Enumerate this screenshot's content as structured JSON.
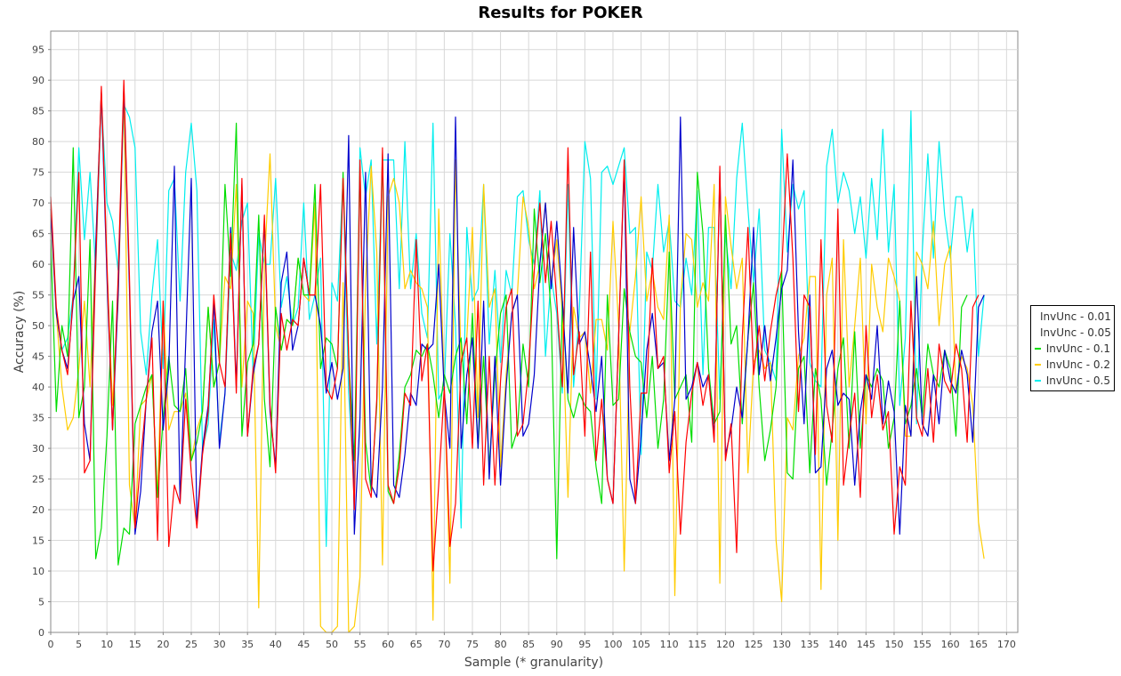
{
  "chart_data": {
    "type": "line",
    "title": "Results for POKER",
    "xlabel": "Sample (* granularity)",
    "ylabel": "Accuracy (%)",
    "xlim": [
      0,
      172
    ],
    "ylim": [
      0,
      98
    ],
    "xticks": [
      0,
      5,
      10,
      15,
      20,
      25,
      30,
      35,
      40,
      45,
      50,
      55,
      60,
      65,
      70,
      75,
      80,
      85,
      90,
      95,
      100,
      105,
      110,
      115,
      120,
      125,
      130,
      135,
      140,
      145,
      150,
      155,
      160,
      165,
      170
    ],
    "yticks": [
      0,
      5,
      10,
      15,
      20,
      25,
      30,
      35,
      40,
      45,
      50,
      55,
      60,
      65,
      70,
      75,
      80,
      85,
      90,
      95
    ],
    "grid": true,
    "legend_position": "right",
    "series": [
      {
        "name": "InvUnc - 0.01",
        "color": "#ff0000",
        "values": [
          71,
          53,
          46,
          42,
          55,
          75,
          26,
          28,
          60,
          89,
          60,
          33,
          58,
          90,
          58,
          17,
          28,
          38,
          48,
          15,
          54,
          14,
          24,
          21,
          38,
          26,
          17,
          29,
          36,
          55,
          44,
          40,
          65,
          39,
          74,
          32,
          43,
          47,
          68,
          37,
          26,
          52,
          46,
          51,
          50,
          61,
          55,
          55,
          73,
          40,
          38,
          43,
          74,
          45,
          20,
          77,
          25,
          22,
          38,
          79,
          24,
          21,
          27,
          39,
          37,
          64,
          41,
          47,
          10,
          24,
          40,
          14,
          21,
          44,
          48,
          30,
          54,
          24,
          45,
          24,
          41,
          53,
          56,
          32,
          34,
          43,
          59,
          70,
          57,
          67,
          54,
          40,
          79,
          42,
          49,
          32,
          62,
          28,
          38,
          25,
          21,
          48,
          77,
          40,
          21,
          39,
          39,
          61,
          43,
          45,
          26,
          36,
          16,
          31,
          39,
          44,
          37,
          42,
          31,
          76,
          28,
          34,
          13,
          48,
          66,
          42,
          50,
          41,
          49,
          55,
          59,
          78,
          61,
          36,
          55,
          53,
          29,
          64,
          37,
          31,
          69,
          24,
          32,
          39,
          22,
          50,
          35,
          42,
          33,
          36,
          16,
          27,
          24,
          54,
          35,
          32,
          43,
          31,
          47,
          41,
          39,
          47,
          43,
          31,
          53,
          55
        ]
      },
      {
        "name": "InvUnc - 0.05",
        "color": "#0000cc",
        "values": [
          69,
          52,
          46,
          43,
          54,
          58,
          34,
          28,
          63,
          88,
          58,
          33,
          55,
          89,
          56,
          16,
          23,
          38,
          49,
          54,
          33,
          43,
          76,
          21,
          47,
          74,
          18,
          30,
          37,
          54,
          30,
          39,
          66,
          40,
          73,
          32,
          42,
          47,
          67,
          36,
          27,
          57,
          62,
          46,
          50,
          61,
          55,
          55,
          50,
          39,
          44,
          38,
          43,
          81,
          16,
          35,
          75,
          24,
          22,
          40,
          78,
          24,
          22,
          29,
          39,
          37,
          47,
          46,
          47,
          60,
          39,
          30,
          84,
          30,
          42,
          48,
          30,
          54,
          25,
          45,
          24,
          40,
          52,
          55,
          32,
          34,
          42,
          60,
          70,
          56,
          67,
          54,
          39,
          66,
          47,
          49,
          43,
          36,
          45,
          25,
          21,
          48,
          76,
          25,
          21,
          32,
          46,
          52,
          43,
          44,
          28,
          38,
          84,
          38,
          40,
          44,
          40,
          42,
          32,
          75,
          29,
          33,
          40,
          35,
          48,
          66,
          42,
          50,
          41,
          48,
          56,
          59,
          77,
          49,
          34,
          55,
          26,
          27,
          43,
          46,
          37,
          39,
          38,
          24,
          36,
          42,
          38,
          50,
          34,
          41,
          36,
          16,
          37,
          32,
          58,
          34,
          32,
          42,
          34,
          46,
          41,
          39,
          46,
          42,
          31,
          53,
          55
        ]
      },
      {
        "name": "InvUnc - 0.1",
        "color": "#00dd00",
        "values": [
          64,
          36,
          50,
          45,
          79,
          35,
          40,
          64,
          12,
          17,
          32,
          54,
          11,
          17,
          16,
          34,
          37,
          40,
          42,
          22,
          35,
          45,
          37,
          36,
          43,
          28,
          31,
          36,
          53,
          40,
          44,
          73,
          58,
          83,
          32,
          44,
          47,
          68,
          38,
          27,
          53,
          46,
          51,
          50,
          61,
          55,
          55,
          73,
          43,
          48,
          47,
          43,
          75,
          45,
          28,
          76,
          31,
          23,
          37,
          78,
          23,
          21,
          29,
          40,
          42,
          46,
          45,
          47,
          42,
          35,
          42,
          39,
          45,
          48,
          34,
          52,
          30,
          45,
          27,
          42,
          52,
          55,
          30,
          33,
          47,
          40,
          69,
          57,
          65,
          52,
          12,
          54,
          38,
          35,
          39,
          37,
          36,
          27,
          21,
          55,
          37,
          38,
          56,
          49,
          45,
          44,
          35,
          45,
          30,
          38,
          62,
          38,
          40,
          42,
          31,
          75,
          65,
          43,
          34,
          36,
          68,
          47,
          50,
          34,
          48,
          57,
          40,
          28,
          33,
          40,
          59,
          26,
          25,
          43,
          45,
          26,
          43,
          38,
          24,
          33,
          43,
          48,
          30,
          49,
          30,
          42,
          40,
          43,
          41,
          30,
          35,
          54,
          34,
          37,
          43,
          35,
          47,
          42,
          40,
          46,
          43,
          32,
          53,
          55
        ]
      },
      {
        "name": "InvUnc - 0.2",
        "color": "#ffcc00",
        "values": [
          68,
          52,
          40,
          33,
          35,
          43,
          54,
          40,
          63,
          88,
          60,
          37,
          54,
          88,
          24,
          17,
          37,
          38,
          42,
          22,
          54,
          33,
          36,
          36,
          39,
          28,
          33,
          36,
          53,
          40,
          44,
          58,
          56,
          73,
          40,
          54,
          52,
          4,
          60,
          78,
          50,
          46,
          51,
          50,
          61,
          55,
          54,
          70,
          1,
          0,
          0,
          1,
          57,
          0,
          1,
          9,
          57,
          76,
          62,
          11,
          71,
          74,
          70,
          56,
          59,
          57,
          56,
          53,
          2,
          69,
          40,
          8,
          77,
          44,
          48,
          66,
          35,
          73,
          53,
          56,
          27,
          42,
          52,
          55,
          71,
          66,
          56,
          60,
          70,
          57,
          64,
          52,
          22,
          53,
          48,
          49,
          39,
          51,
          51,
          46,
          67,
          50,
          10,
          49,
          58,
          71,
          54,
          59,
          53,
          51,
          68,
          6,
          54,
          65,
          64,
          53,
          57,
          54,
          73,
          8,
          71,
          63,
          56,
          61,
          26,
          44,
          46,
          43,
          44,
          15,
          5,
          35,
          33,
          45,
          48,
          58,
          58,
          7,
          55,
          61,
          15,
          64,
          40,
          50,
          61,
          34,
          60,
          53,
          49,
          61,
          58,
          54,
          32,
          32,
          62,
          60,
          56,
          67,
          50,
          60,
          63,
          39,
          45,
          43,
          37,
          18,
          12
        ]
      },
      {
        "name": "InvUnc - 0.5",
        "color": "#00eeee",
        "values": [
          70,
          52,
          46,
          48,
          55,
          79,
          64,
          75,
          59,
          87,
          70,
          67,
          59,
          86,
          84,
          79,
          49,
          42,
          55,
          64,
          43,
          72,
          74,
          54,
          75,
          83,
          72,
          30,
          34,
          51,
          31,
          39,
          62,
          59,
          67,
          70,
          42,
          65,
          60,
          60,
          74,
          53,
          58,
          50,
          53,
          70,
          51,
          55,
          61,
          14,
          57,
          54,
          74,
          39,
          23,
          79,
          71,
          77,
          47,
          77,
          77,
          77,
          56,
          80,
          56,
          65,
          52,
          48,
          83,
          38,
          40,
          65,
          50,
          17,
          66,
          54,
          56,
          73,
          47,
          59,
          44,
          59,
          55,
          71,
          72,
          64,
          60,
          72,
          45,
          58,
          52,
          39,
          73,
          40,
          52,
          80,
          74,
          38,
          75,
          76,
          73,
          76,
          79,
          65,
          66,
          29,
          62,
          59,
          73,
          62,
          67,
          54,
          53,
          61,
          55,
          72,
          42,
          66,
          66,
          38,
          65,
          56,
          74,
          83,
          69,
          57,
          69,
          46,
          44,
          41,
          82,
          62,
          73,
          69,
          72,
          44,
          41,
          40,
          76,
          82,
          70,
          75,
          72,
          65,
          71,
          61,
          74,
          64,
          82,
          62,
          73,
          37,
          48,
          85,
          34,
          62,
          78,
          61,
          80,
          68,
          61,
          71,
          71,
          62,
          69,
          45,
          55
        ]
      }
    ]
  }
}
